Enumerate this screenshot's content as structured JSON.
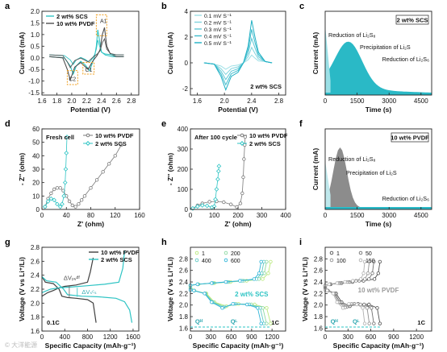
{
  "chart_data": [
    {
      "panel": "a",
      "type": "line",
      "xlabel": "Potential (V)",
      "ylabel": "Current (mA)",
      "xlim": [
        1.6,
        2.9
      ],
      "ylim": [
        -1.6,
        2.0
      ],
      "xticks": [
        1.6,
        1.8,
        2.0,
        2.2,
        2.4,
        2.6,
        2.8
      ],
      "yticks": [
        -1.5,
        -1.0,
        -0.5,
        0.0,
        0.5,
        1.0,
        1.5,
        2.0
      ],
      "tick_labels_x": [
        "1.6",
        "1.8",
        "2.0",
        "2.2",
        "2.4",
        "2.6",
        "2.8"
      ],
      "tick_labels_y": [
        "-1.5",
        "-1.0",
        "-0.5",
        "0.0",
        "0.5",
        "1.0",
        "1.5",
        "2.0"
      ],
      "annotations": [
        "A1",
        "C1",
        "C2"
      ],
      "series": [
        {
          "name": "2 wt% SCS",
          "color": "#30c4c4",
          "x": [
            1.7,
            1.9,
            1.98,
            2.02,
            2.06,
            2.12,
            2.18,
            2.24,
            2.28,
            2.31,
            2.33,
            2.35,
            2.37,
            2.4,
            2.45,
            2.55,
            2.7
          ],
          "y": [
            0.05,
            0.0,
            -0.35,
            -0.7,
            -0.35,
            -0.15,
            -0.3,
            -0.55,
            -0.2,
            0.1,
            0.5,
            1.2,
            0.8,
            0.25,
            0.12,
            0.05,
            0.05
          ]
        },
        {
          "name": "10 wt% PVDF",
          "color": "#505050",
          "x": [
            1.7,
            1.88,
            1.94,
            1.98,
            2.04,
            2.12,
            2.17,
            2.22,
            2.28,
            2.34,
            2.38,
            2.41,
            2.44,
            2.47,
            2.52,
            2.6,
            2.7
          ],
          "y": [
            0.05,
            0.0,
            -0.5,
            -0.95,
            -0.4,
            -0.2,
            -0.35,
            -0.5,
            -0.15,
            0.1,
            0.35,
            1.0,
            1.3,
            0.5,
            0.15,
            0.05,
            0.05
          ]
        }
      ]
    },
    {
      "panel": "b",
      "type": "line",
      "xlabel": "Potential (V)",
      "ylabel": "Current (mA)",
      "xlim": [
        1.5,
        2.9
      ],
      "ylim": [
        -2.5,
        4.0
      ],
      "xticks": [
        1.6,
        2.0,
        2.4,
        2.8
      ],
      "yticks": [
        -2,
        0,
        2,
        4
      ],
      "tick_labels_x": [
        "1.6",
        "2.0",
        "2.4",
        "2.8"
      ],
      "tick_labels_y": [
        "-2",
        "0",
        "2",
        "4"
      ],
      "annotation": "2 wt% SCS",
      "series": [
        {
          "name": "0.1 mV S⁻¹",
          "peak_ox": 0.6,
          "peak_red": -0.5,
          "color": "#9fe0e6"
        },
        {
          "name": "0.2 mV S⁻¹",
          "peak_ox": 1.2,
          "peak_red": -0.9,
          "color": "#80d4de"
        },
        {
          "name": "0.3 mV S⁻¹",
          "peak_ox": 1.9,
          "peak_red": -1.3,
          "color": "#60c8d6"
        },
        {
          "name": "0.4 mV S⁻¹",
          "peak_ox": 2.6,
          "peak_red": -1.7,
          "color": "#40bccd"
        },
        {
          "name": "0.5 mV S⁻¹",
          "peak_ox": 3.3,
          "peak_red": -2.1,
          "color": "#20b0c4"
        }
      ]
    },
    {
      "panel": "c",
      "type": "area",
      "xlabel": "Time (s)",
      "ylabel": "Current (mA)",
      "xlim": [
        0,
        5000
      ],
      "xticks": [
        0,
        1500,
        3000,
        4500
      ],
      "tick_labels_x": [
        "0",
        "1500",
        "3000",
        "4500"
      ],
      "title": "2 wt% SCS",
      "annotations": [
        "Reduction of Li₂S₈",
        "Precipitation of Li₂S",
        "Reduction of Li₂S₆"
      ]
    },
    {
      "panel": "d",
      "type": "scatter",
      "xlabel": "Z' (ohm)",
      "ylabel": "- Z'' (ohm)",
      "xlim": [
        0,
        160
      ],
      "ylim": [
        0,
        60
      ],
      "xticks": [
        0,
        40,
        80,
        120,
        160
      ],
      "yticks": [
        0,
        10,
        20,
        30,
        40,
        50,
        60
      ],
      "tick_labels_x": [
        "0",
        "40",
        "80",
        "120",
        "160"
      ],
      "tick_labels_y": [
        "0",
        "10",
        "20",
        "30",
        "40",
        "50",
        "60"
      ],
      "annotation": "Fresh cell",
      "series": [
        {
          "name": "10 wt% PVDF",
          "color": "#7a7a7a",
          "x": [
            5,
            10,
            15,
            20,
            25,
            30,
            35,
            40,
            45,
            50,
            55,
            60,
            65,
            70,
            80,
            90,
            100,
            110,
            120,
            130
          ],
          "y": [
            2,
            8,
            12,
            15,
            16,
            16,
            14,
            10,
            6,
            3,
            2,
            4,
            7,
            10,
            16,
            22,
            28,
            34,
            40,
            48
          ]
        },
        {
          "name": "2 wt% SCS",
          "color": "#2ec4c4",
          "x": [
            5,
            10,
            15,
            20,
            25,
            30,
            33,
            36,
            38,
            39,
            40,
            41
          ],
          "y": [
            2,
            6,
            8,
            7,
            4,
            2,
            4,
            10,
            20,
            30,
            42,
            54
          ]
        }
      ]
    },
    {
      "panel": "e",
      "type": "scatter",
      "xlabel": "Z' (ohm)",
      "ylabel": "- Z'' (ohm)",
      "xlim": [
        0,
        400
      ],
      "ylim": [
        0,
        400
      ],
      "xticks": [
        0,
        100,
        200,
        300,
        400
      ],
      "yticks": [
        0,
        100,
        200,
        300,
        400
      ],
      "tick_labels_x": [
        "0",
        "100",
        "200",
        "300",
        "400"
      ],
      "tick_labels_y": [
        "0",
        "100",
        "200",
        "300",
        "400"
      ],
      "annotation": "After 100 cycle",
      "series": [
        {
          "name": "10 wt% PVDF",
          "color": "#7a7a7a",
          "x": [
            10,
            30,
            50,
            80,
            110,
            140,
            170,
            195,
            210,
            218,
            222,
            225,
            228,
            230
          ],
          "y": [
            5,
            20,
            30,
            38,
            40,
            36,
            25,
            12,
            30,
            80,
            160,
            250,
            320,
            360
          ]
        },
        {
          "name": "2 wt% SCS",
          "color": "#2ec4c4",
          "x": [
            10,
            30,
            50,
            70,
            90,
            100,
            105,
            110,
            115,
            118,
            120
          ],
          "y": [
            5,
            15,
            20,
            18,
            10,
            15,
            50,
            100,
            150,
            190,
            215
          ]
        }
      ]
    },
    {
      "panel": "f",
      "type": "area",
      "xlabel": "Time (s)",
      "ylabel": "Current (mA)",
      "xlim": [
        0,
        5000
      ],
      "xticks": [
        0,
        1500,
        3000,
        4500
      ],
      "tick_labels_x": [
        "0",
        "1500",
        "3000",
        "4500"
      ],
      "title": "10 wt% PVDF",
      "annotations": [
        "Reduction of Li₂S₈",
        "Precipitation of Li₂S",
        "Reduction of Li₂S₆"
      ]
    },
    {
      "panel": "g",
      "type": "line",
      "xlabel": "Specific Capacity (mAh·g⁻¹)",
      "ylabel": "Voltage (V vs Li⁺/Li)",
      "xlim": [
        0,
        1700
      ],
      "ylim": [
        1.6,
        2.8
      ],
      "xticks": [
        0,
        400,
        800,
        1200,
        1600
      ],
      "yticks": [
        1.6,
        1.8,
        2.0,
        2.2,
        2.4,
        2.6,
        2.8
      ],
      "tick_labels_x": [
        "0",
        "400",
        "800",
        "1200",
        "1600"
      ],
      "tick_labels_y": [
        "1.6",
        "1.8",
        "2.0",
        "2.2",
        "2.4",
        "2.6",
        "2.8"
      ],
      "annotations": [
        "ΔVₚᵥᵈᶠ",
        "ΔVₛᶜₛ",
        "0.1C"
      ],
      "series": [
        {
          "name": "10 wt% PVDF",
          "color": "#404040"
        },
        {
          "name": "2 wt% SCS",
          "color": "#2ec4c4"
        }
      ]
    },
    {
      "panel": "h",
      "type": "line",
      "xlabel": "Specific Capacity (mAh·g⁻¹)",
      "ylabel": "Voltage (V vs Li⁺/Li)",
      "xlim": [
        0,
        1400
      ],
      "ylim": [
        1.55,
        3.0
      ],
      "xticks": [
        0,
        300,
        600,
        900,
        1200
      ],
      "yticks": [
        1.6,
        1.8,
        2.0,
        2.2,
        2.4,
        2.6,
        2.8
      ],
      "tick_labels_x": [
        "0",
        "300",
        "600",
        "900",
        "1200"
      ],
      "tick_labels_y": [
        "1.6",
        "1.8",
        "2.0",
        "2.2",
        "2.4",
        "2.6",
        "2.8"
      ],
      "annotations": [
        "2 wt% SCS",
        "1C",
        "Qᴴ",
        "Qᴸ"
      ],
      "series": [
        {
          "name": "1",
          "color": "#b8e87a",
          "end_capacity": 1180
        },
        {
          "name": "200",
          "color": "#8bd8a0",
          "end_capacity": 1120
        },
        {
          "name": "400",
          "color": "#5ec8c4",
          "end_capacity": 1080
        },
        {
          "name": "600",
          "color": "#2eb4d8",
          "end_capacity": 1040
        }
      ]
    },
    {
      "panel": "i",
      "type": "line",
      "xlabel": "Specific Capacity (mAh·g⁻¹)",
      "ylabel": "Voltage (V vs Li⁺/Li)",
      "xlim": [
        0,
        1400
      ],
      "ylim": [
        1.55,
        3.0
      ],
      "xticks": [
        0,
        300,
        600,
        900,
        1200
      ],
      "yticks": [
        1.6,
        1.8,
        2.0,
        2.2,
        2.4,
        2.6,
        2.8
      ],
      "tick_labels_x": [
        "0",
        "300",
        "600",
        "900",
        "1200"
      ],
      "tick_labels_y": [
        "1.6",
        "1.8",
        "2.0",
        "2.2",
        "2.4",
        "2.6",
        "2.8"
      ],
      "annotations": [
        "10 wt% PVDF",
        "1C",
        "Qᴴ",
        "Qᴸ"
      ],
      "series": [
        {
          "name": "1",
          "color": "#505050",
          "end_capacity": 720
        },
        {
          "name": "50",
          "color": "#707070",
          "end_capacity": 640
        },
        {
          "name": "100",
          "color": "#909090",
          "end_capacity": 580
        },
        {
          "name": "150",
          "color": "#b0b0b0",
          "end_capacity": 520
        }
      ]
    }
  ],
  "panel_letters": [
    "a",
    "b",
    "c",
    "d",
    "e",
    "f",
    "g",
    "h",
    "i"
  ],
  "watermark": "© 大洋能源"
}
